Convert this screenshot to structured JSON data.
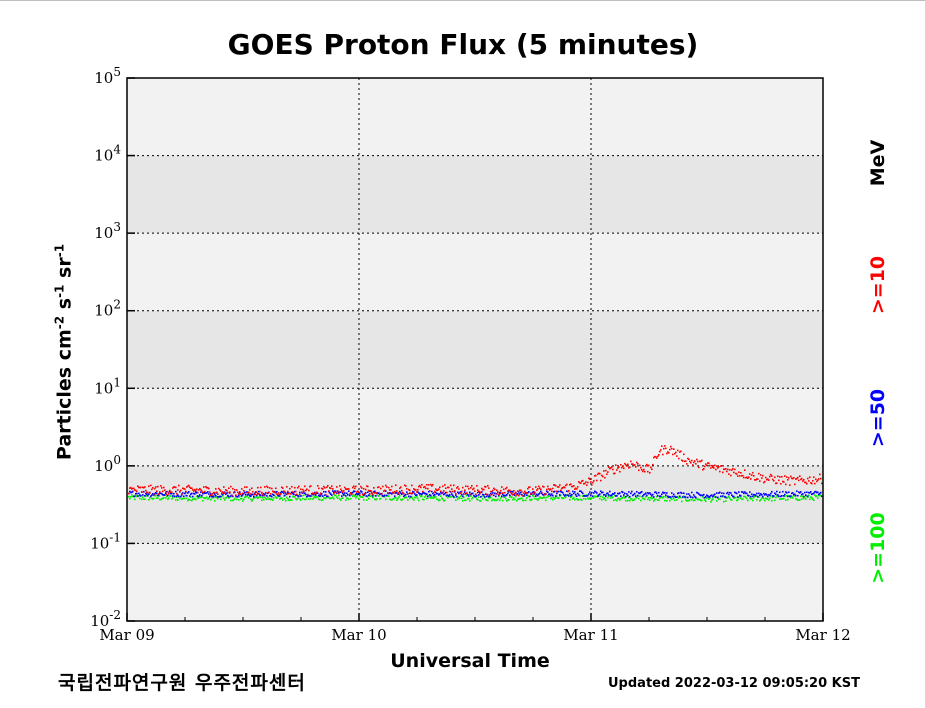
{
  "chart_data": {
    "type": "scatter",
    "title": "GOES Proton Flux (5 minutes)",
    "xlabel": "Universal Time",
    "ylabel": "Particles cm-2 s-1 sr-1",
    "y_scale": "log",
    "ylim": [
      0.01,
      100000
    ],
    "y_ticks": [
      {
        "base": "10",
        "exp": "-2",
        "value": 0.01
      },
      {
        "base": "10",
        "exp": "-1",
        "value": 0.1
      },
      {
        "base": "10",
        "exp": "0",
        "value": 1
      },
      {
        "base": "10",
        "exp": "1",
        "value": 10
      },
      {
        "base": "10",
        "exp": "2",
        "value": 100
      },
      {
        "base": "10",
        "exp": "3",
        "value": 1000
      },
      {
        "base": "10",
        "exp": "4",
        "value": 10000
      },
      {
        "base": "10",
        "exp": "5",
        "value": 100000
      }
    ],
    "x_ticks": [
      "Mar 09",
      "Mar 10",
      "Mar 11",
      "Mar 12"
    ],
    "xlim": [
      "Mar 09",
      "Mar 12"
    ],
    "grid": true,
    "legend_unit": "MeV",
    "legend_placement": "right",
    "series": [
      {
        "name": ">=10",
        "color": "#ff0000",
        "x": [
          "Mar 09 00:00",
          "Mar 09 06:00",
          "Mar 09 12:00",
          "Mar 09 18:00",
          "Mar 10 00:00",
          "Mar 10 06:00",
          "Mar 10 12:00",
          "Mar 10 18:00",
          "Mar 10 22:00",
          "Mar 11 00:00",
          "Mar 11 02:00",
          "Mar 11 04:00",
          "Mar 11 06:00",
          "Mar 11 07:00",
          "Mar 11 08:00",
          "Mar 11 10:00",
          "Mar 11 12:00",
          "Mar 11 15:00",
          "Mar 11 18:00",
          "Mar 11 21:00",
          "Mar 12 00:00"
        ],
        "values": [
          0.5,
          0.5,
          0.48,
          0.5,
          0.49,
          0.52,
          0.5,
          0.48,
          0.55,
          0.65,
          0.9,
          1.1,
          0.9,
          1.6,
          1.7,
          1.2,
          1.0,
          0.85,
          0.7,
          0.65,
          0.7
        ]
      },
      {
        "name": ">=50",
        "color": "#0000ff",
        "x": [
          "Mar 09 00:00",
          "Mar 09 12:00",
          "Mar 10 00:00",
          "Mar 10 12:00",
          "Mar 11 00:00",
          "Mar 11 12:00",
          "Mar 12 00:00"
        ],
        "values": [
          0.45,
          0.44,
          0.45,
          0.44,
          0.45,
          0.43,
          0.45
        ]
      },
      {
        "name": ">=100",
        "color": "#00ee00",
        "x": [
          "Mar 09 00:00",
          "Mar 09 12:00",
          "Mar 10 00:00",
          "Mar 10 12:00",
          "Mar 11 00:00",
          "Mar 11 12:00",
          "Mar 12 00:00"
        ],
        "values": [
          0.4,
          0.39,
          0.4,
          0.39,
          0.4,
          0.38,
          0.4
        ]
      }
    ]
  },
  "footer": {
    "org": "국립전파연구원 우주전파센터",
    "updated": "Updated 2022-03-12 09:05:20 KST"
  },
  "colors": {
    "band_light": "#f2f2f2",
    "band_dark": "#e6e6e6"
  }
}
